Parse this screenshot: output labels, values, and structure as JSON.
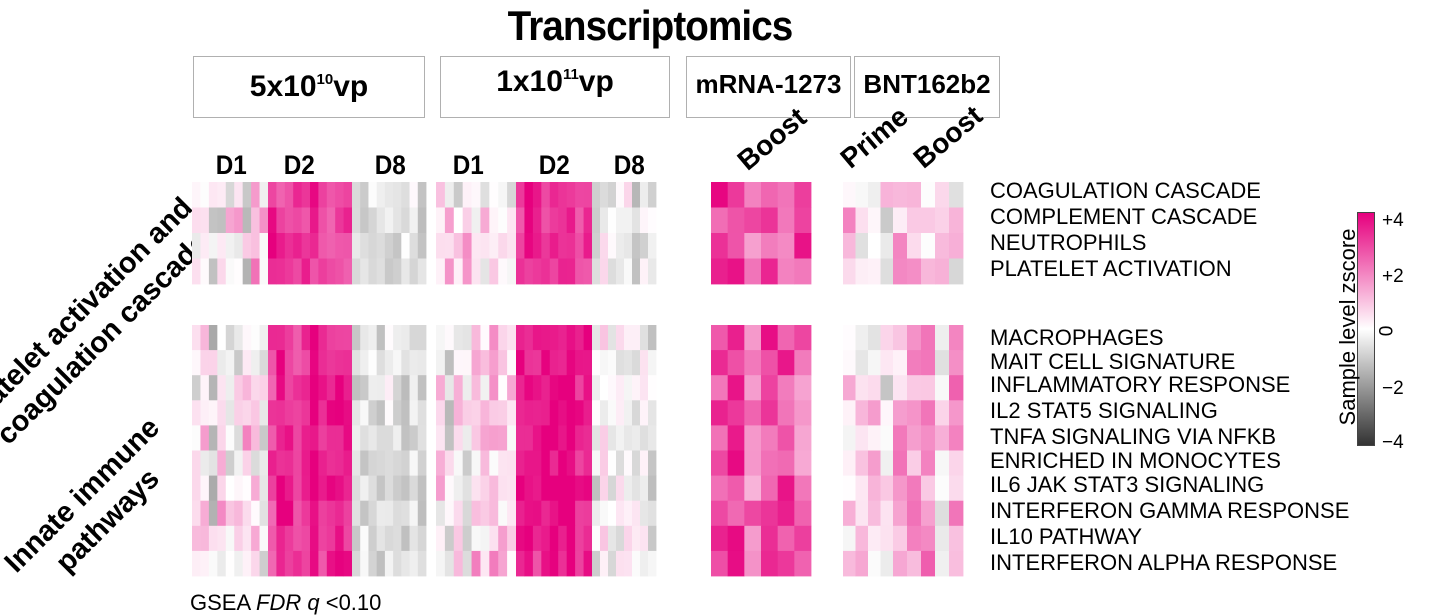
{
  "chart_data": {
    "type": "heatmap",
    "title": "Transcriptomics",
    "groups": [
      {
        "key": "g5e10",
        "label_base": "5x10",
        "label_exp": "10",
        "label_unit": "vp",
        "timepoints": [
          "D1",
          "D2",
          "D8"
        ]
      },
      {
        "key": "g1e11",
        "label_base": "1x10",
        "label_exp": "11",
        "label_unit": "vp",
        "timepoints": [
          "D1",
          "D2",
          "D8"
        ]
      },
      {
        "key": "mrna",
        "label": "mRNA-1273",
        "timepoints": [
          "Boost"
        ]
      },
      {
        "key": "bnt",
        "label": "BNT162b2",
        "timepoints": [
          "Prime",
          "Boost"
        ]
      }
    ],
    "row_groups": [
      {
        "label_lines": [
          "Platelet activation and",
          "coagulation cascade"
        ],
        "rows": [
          "COAGULATION CASCADE",
          "COMPLEMENT CASCADE",
          "NEUTROPHILS",
          "PLATELET ACTIVATION"
        ]
      },
      {
        "label_lines": [
          "Innate immune",
          "pathways"
        ],
        "rows": [
          "MACROPHAGES",
          "MAIT CELL SIGNATURE",
          "INFLAMMATORY RESPONSE",
          "IL2 STAT5 SIGNALING",
          "TNFA SIGNALING VIA NFKB",
          "ENRICHED IN MONOCYTES",
          "IL6 JAK STAT3 SIGNALING",
          "INTERFERON GAMMA RESPONSE",
          "IL10 PATHWAY",
          "INTERFERON ALPHA RESPONSE"
        ]
      }
    ],
    "colorbar": {
      "label": "Sample level zscore",
      "min": -4,
      "max": 4,
      "ticks": [
        "+4",
        "+2",
        "0",
        "−2",
        "−4"
      ],
      "low_color": "#333333",
      "mid_color": "#ffffff",
      "high_color": "#e6007e"
    },
    "footnote": {
      "prefix": "GSEA ",
      "italic": "FDR q",
      "suffix": " <0.10"
    },
    "panel_pattern": {
      "g5e10_D1": {
        "mean": 0.4,
        "spread": 1.6
      },
      "g5e10_D2": {
        "mean": 3.4,
        "spread": 0.8
      },
      "g5e10_D8": {
        "mean": -0.6,
        "spread": 0.7
      },
      "g1e11_D1": {
        "mean": 0.2,
        "spread": 1.4
      },
      "g1e11_D2": {
        "mean": 3.6,
        "spread": 0.7
      },
      "g1e11_D8": {
        "mean": -0.3,
        "spread": 0.9
      },
      "mrna_Boost": {
        "mean": 2.6,
        "spread": 1.2
      },
      "bnt_Prime": {
        "mean": 0.5,
        "spread": 1.5
      },
      "bnt_Boost": {
        "mean": 1.0,
        "spread": 1.3
      }
    }
  }
}
